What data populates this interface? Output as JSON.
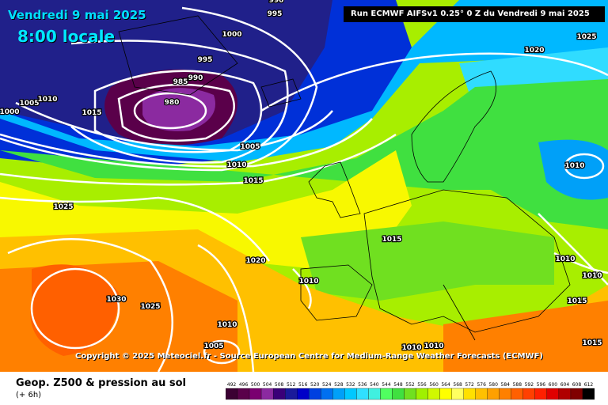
{
  "header": {
    "date": "Vendredi 9 mai 2025",
    "time": "8:00 locale",
    "run": "Run ECMWF AIFSv1 0.25° 0 Z du Vendredi 9 mai 2025"
  },
  "copyright": "Copyright © 2025 Meteociel.fr - Source European Centre for Medium-Range Weather Forecasts (ECMWF)",
  "legend": {
    "title": "Geop. Z500 & pression au sol",
    "subtitle": "(+ 6h)",
    "scale_values": [
      "492",
      "496",
      "500",
      "504",
      "508",
      "512",
      "516",
      "520",
      "524",
      "528",
      "532",
      "536",
      "540",
      "544",
      "548",
      "552",
      "556",
      "560",
      "564",
      "568",
      "572",
      "576",
      "580",
      "584",
      "588",
      "592",
      "596",
      "600",
      "604",
      "608",
      "612"
    ],
    "scale_colors": [
      "#3b0033",
      "#5a004a",
      "#7a0070",
      "#8b2aa0",
      "#3a0078",
      "#1a1a9a",
      "#0000c8",
      "#0040e0",
      "#0070f0",
      "#00a0f8",
      "#00c8ff",
      "#30e0ff",
      "#40f0e0",
      "#50ff60",
      "#40e040",
      "#70e020",
      "#a0f000",
      "#d0f800",
      "#ffff00",
      "#ffff60",
      "#ffe000",
      "#ffc000",
      "#ffa000",
      "#ff8000",
      "#ff6000",
      "#ff4000",
      "#ff2000",
      "#e00000",
      "#b00000",
      "#800000",
      "#000000"
    ]
  },
  "pressure_labels": [
    {
      "text": "995"
    },
    {
      "text": "1000"
    },
    {
      "text": "995"
    },
    {
      "text": "985"
    },
    {
      "text": "990"
    },
    {
      "text": "980"
    },
    {
      "text": "1005"
    },
    {
      "text": "1010"
    },
    {
      "text": "1000"
    },
    {
      "text": "1015"
    },
    {
      "text": "1005"
    },
    {
      "text": "1010"
    },
    {
      "text": "1015"
    },
    {
      "text": "1025"
    },
    {
      "text": "1020"
    },
    {
      "text": "1025"
    },
    {
      "text": "1010"
    },
    {
      "text": "1015"
    },
    {
      "text": "1020"
    },
    {
      "text": "1010"
    },
    {
      "text": "1030"
    },
    {
      "text": "1025"
    },
    {
      "text": "1010"
    },
    {
      "text": "1005"
    },
    {
      "text": "1010"
    },
    {
      "text": "1010"
    },
    {
      "text": "1010"
    },
    {
      "text": "1010"
    },
    {
      "text": "1015"
    },
    {
      "text": "1015"
    },
    {
      "text": "990"
    }
  ]
}
